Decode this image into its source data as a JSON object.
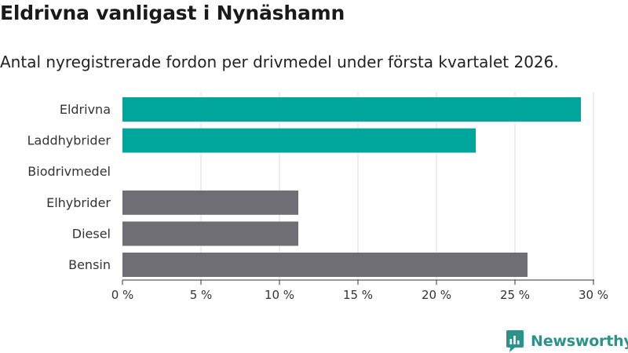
{
  "header": {
    "title": "Eldrivna vanligast i Nynäshamn",
    "subtitle": "Antal nyregistrerade fordon per drivmedel under första kvartalet 2026."
  },
  "chart_data": {
    "type": "bar",
    "orientation": "horizontal",
    "title": "Eldrivna vanligast i Nynäshamn",
    "subtitle": "Antal nyregistrerade fordon per drivmedel under första kvartalet 2026.",
    "categories": [
      "Eldrivna",
      "Laddhybrider",
      "Biodrivmedel",
      "Elhybrider",
      "Diesel",
      "Bensin"
    ],
    "values": [
      29.2,
      22.5,
      0,
      11.2,
      11.2,
      25.8
    ],
    "unit": "%",
    "xlim": [
      0,
      30
    ],
    "xticks": [
      0,
      5,
      10,
      15,
      20,
      25,
      30
    ],
    "xtick_labels": [
      "0 %",
      "5 %",
      "10 %",
      "15 %",
      "20 %",
      "25 %",
      "30 %"
    ],
    "grid": true,
    "xlabel": "",
    "ylabel": "",
    "colors": {
      "electric": "#00a59b",
      "fossil": "#6f6e75",
      "grid": "#dddddd",
      "axis": "#333333"
    },
    "bar_groups": [
      "electric",
      "electric",
      "electric",
      "fossil",
      "fossil",
      "fossil"
    ]
  },
  "branding": {
    "name": "Newsworthy",
    "icon": "newsworthy-logo-icon",
    "color": "#2b9389"
  }
}
